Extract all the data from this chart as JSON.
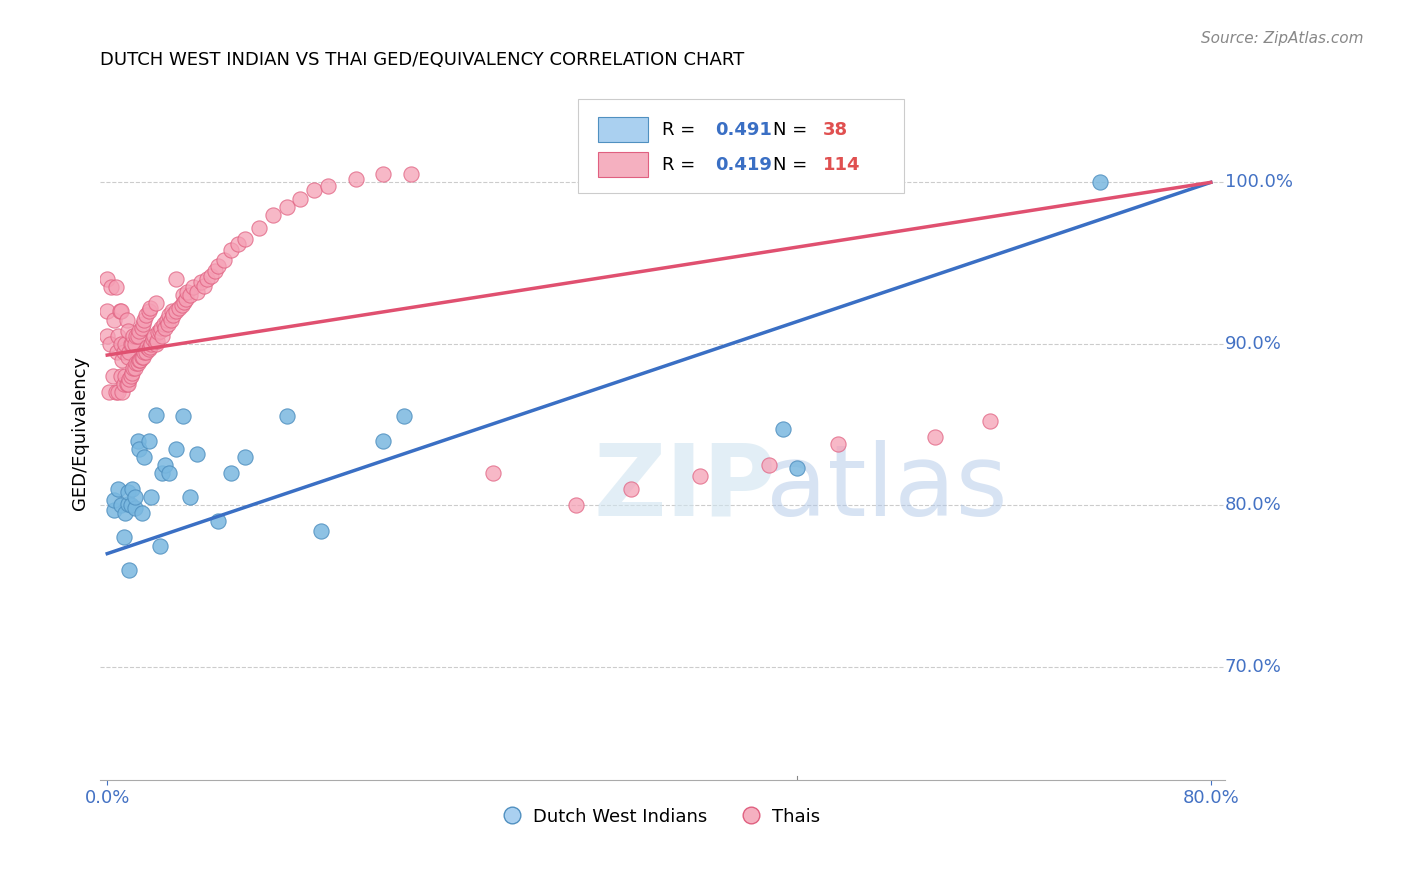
{
  "title": "DUTCH WEST INDIAN VS THAI GED/EQUIVALENCY CORRELATION CHART",
  "source": "Source: ZipAtlas.com",
  "ylabel": "GED/Equivalency",
  "ytick_values": [
    0.7,
    0.8,
    0.9,
    1.0
  ],
  "ytick_labels": [
    "70.0%",
    "80.0%",
    "90.0%",
    "100.0%"
  ],
  "xlim": [
    -0.005,
    0.81
  ],
  "ylim": [
    0.63,
    1.06
  ],
  "legend1_R": "0.491",
  "legend1_N": "38",
  "legend2_R": "0.419",
  "legend2_N": "114",
  "blue_scatter_color": "#7ab8e0",
  "blue_edge_color": "#5090c0",
  "pink_scatter_color": "#f5a0b5",
  "pink_edge_color": "#e06080",
  "blue_line_color": "#3a6fc4",
  "pink_line_color": "#e05070",
  "blue_line_x0": 0.0,
  "blue_line_x1": 0.8,
  "blue_line_y0": 0.77,
  "blue_line_y1": 1.0,
  "pink_line_x0": 0.0,
  "pink_line_x1": 0.8,
  "pink_line_y0": 0.893,
  "pink_line_y1": 1.0,
  "blue_x": [
    0.005,
    0.005,
    0.008,
    0.01,
    0.012,
    0.013,
    0.015,
    0.015,
    0.016,
    0.017,
    0.018,
    0.02,
    0.02,
    0.022,
    0.023,
    0.025,
    0.027,
    0.03,
    0.032,
    0.035,
    0.038,
    0.04,
    0.042,
    0.045,
    0.05,
    0.055,
    0.06,
    0.065,
    0.08,
    0.09,
    0.1,
    0.13,
    0.155,
    0.2,
    0.215,
    0.49,
    0.5,
    0.72
  ],
  "blue_y": [
    0.797,
    0.803,
    0.81,
    0.8,
    0.78,
    0.795,
    0.801,
    0.808,
    0.76,
    0.8,
    0.81,
    0.798,
    0.805,
    0.84,
    0.835,
    0.795,
    0.83,
    0.84,
    0.805,
    0.856,
    0.775,
    0.82,
    0.825,
    0.82,
    0.835,
    0.855,
    0.805,
    0.832,
    0.79,
    0.82,
    0.83,
    0.855,
    0.784,
    0.84,
    0.855,
    0.847,
    0.823,
    1.0
  ],
  "pink_x": [
    0.0,
    0.0,
    0.0,
    0.001,
    0.002,
    0.003,
    0.004,
    0.005,
    0.006,
    0.006,
    0.007,
    0.008,
    0.008,
    0.009,
    0.01,
    0.01,
    0.01,
    0.011,
    0.011,
    0.012,
    0.012,
    0.013,
    0.013,
    0.014,
    0.014,
    0.015,
    0.015,
    0.015,
    0.016,
    0.016,
    0.017,
    0.017,
    0.018,
    0.018,
    0.019,
    0.019,
    0.02,
    0.02,
    0.021,
    0.021,
    0.022,
    0.022,
    0.023,
    0.023,
    0.024,
    0.025,
    0.025,
    0.026,
    0.026,
    0.027,
    0.027,
    0.028,
    0.028,
    0.029,
    0.03,
    0.03,
    0.031,
    0.031,
    0.032,
    0.033,
    0.034,
    0.035,
    0.035,
    0.036,
    0.037,
    0.038,
    0.039,
    0.04,
    0.041,
    0.042,
    0.043,
    0.044,
    0.045,
    0.046,
    0.047,
    0.048,
    0.05,
    0.05,
    0.052,
    0.054,
    0.055,
    0.056,
    0.057,
    0.058,
    0.06,
    0.062,
    0.065,
    0.068,
    0.07,
    0.072,
    0.075,
    0.078,
    0.08,
    0.085,
    0.09,
    0.095,
    0.1,
    0.11,
    0.12,
    0.13,
    0.14,
    0.15,
    0.16,
    0.18,
    0.2,
    0.22,
    0.28,
    0.34,
    0.38,
    0.43,
    0.48,
    0.53,
    0.6,
    0.64
  ],
  "pink_y": [
    0.92,
    0.905,
    0.94,
    0.87,
    0.9,
    0.935,
    0.88,
    0.915,
    0.87,
    0.935,
    0.895,
    0.87,
    0.905,
    0.92,
    0.9,
    0.88,
    0.92,
    0.87,
    0.89,
    0.875,
    0.895,
    0.88,
    0.9,
    0.875,
    0.915,
    0.875,
    0.892,
    0.908,
    0.878,
    0.895,
    0.88,
    0.9,
    0.882,
    0.9,
    0.885,
    0.905,
    0.885,
    0.9,
    0.888,
    0.905,
    0.888,
    0.905,
    0.89,
    0.908,
    0.89,
    0.892,
    0.91,
    0.892,
    0.912,
    0.895,
    0.915,
    0.895,
    0.918,
    0.898,
    0.897,
    0.92,
    0.898,
    0.922,
    0.9,
    0.903,
    0.905,
    0.9,
    0.925,
    0.902,
    0.907,
    0.908,
    0.91,
    0.905,
    0.912,
    0.91,
    0.915,
    0.912,
    0.918,
    0.915,
    0.92,
    0.918,
    0.92,
    0.94,
    0.922,
    0.924,
    0.93,
    0.926,
    0.928,
    0.932,
    0.93,
    0.935,
    0.932,
    0.938,
    0.936,
    0.94,
    0.942,
    0.945,
    0.948,
    0.952,
    0.958,
    0.962,
    0.965,
    0.972,
    0.98,
    0.985,
    0.99,
    0.995,
    0.998,
    1.002,
    1.005,
    1.005,
    0.82,
    0.8,
    0.81,
    0.818,
    0.825,
    0.838,
    0.842,
    0.852
  ]
}
